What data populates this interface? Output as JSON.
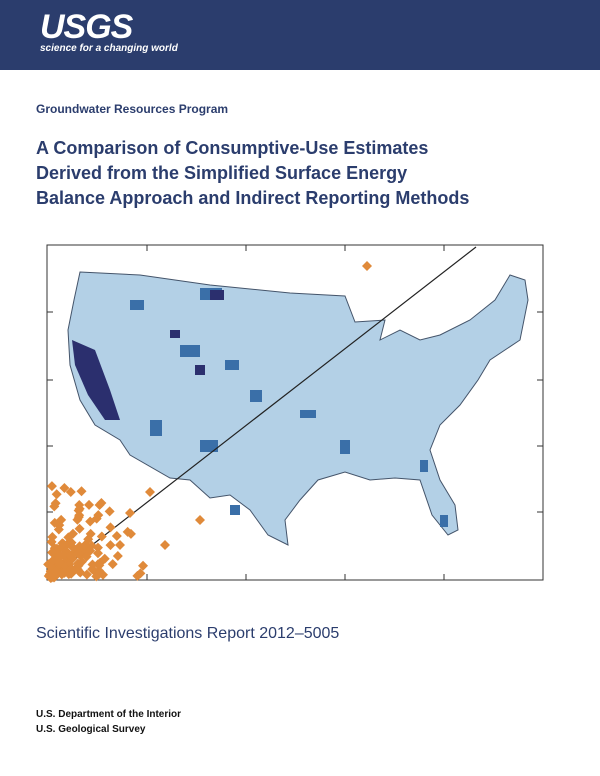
{
  "header": {
    "logo": "USGS",
    "tagline": "science for a changing world"
  },
  "program": "Groundwater Resources Program",
  "title_lines": [
    "A Comparison of Consumptive-Use Estimates",
    "Derived from the Simplified Surface Energy",
    "Balance Approach and Indirect Reporting Methods"
  ],
  "series_line": "Scientific Investigations Report 2012–5005",
  "footer": [
    "U.S. Department of the Interior",
    "U.S. Geological Survey"
  ]
}
